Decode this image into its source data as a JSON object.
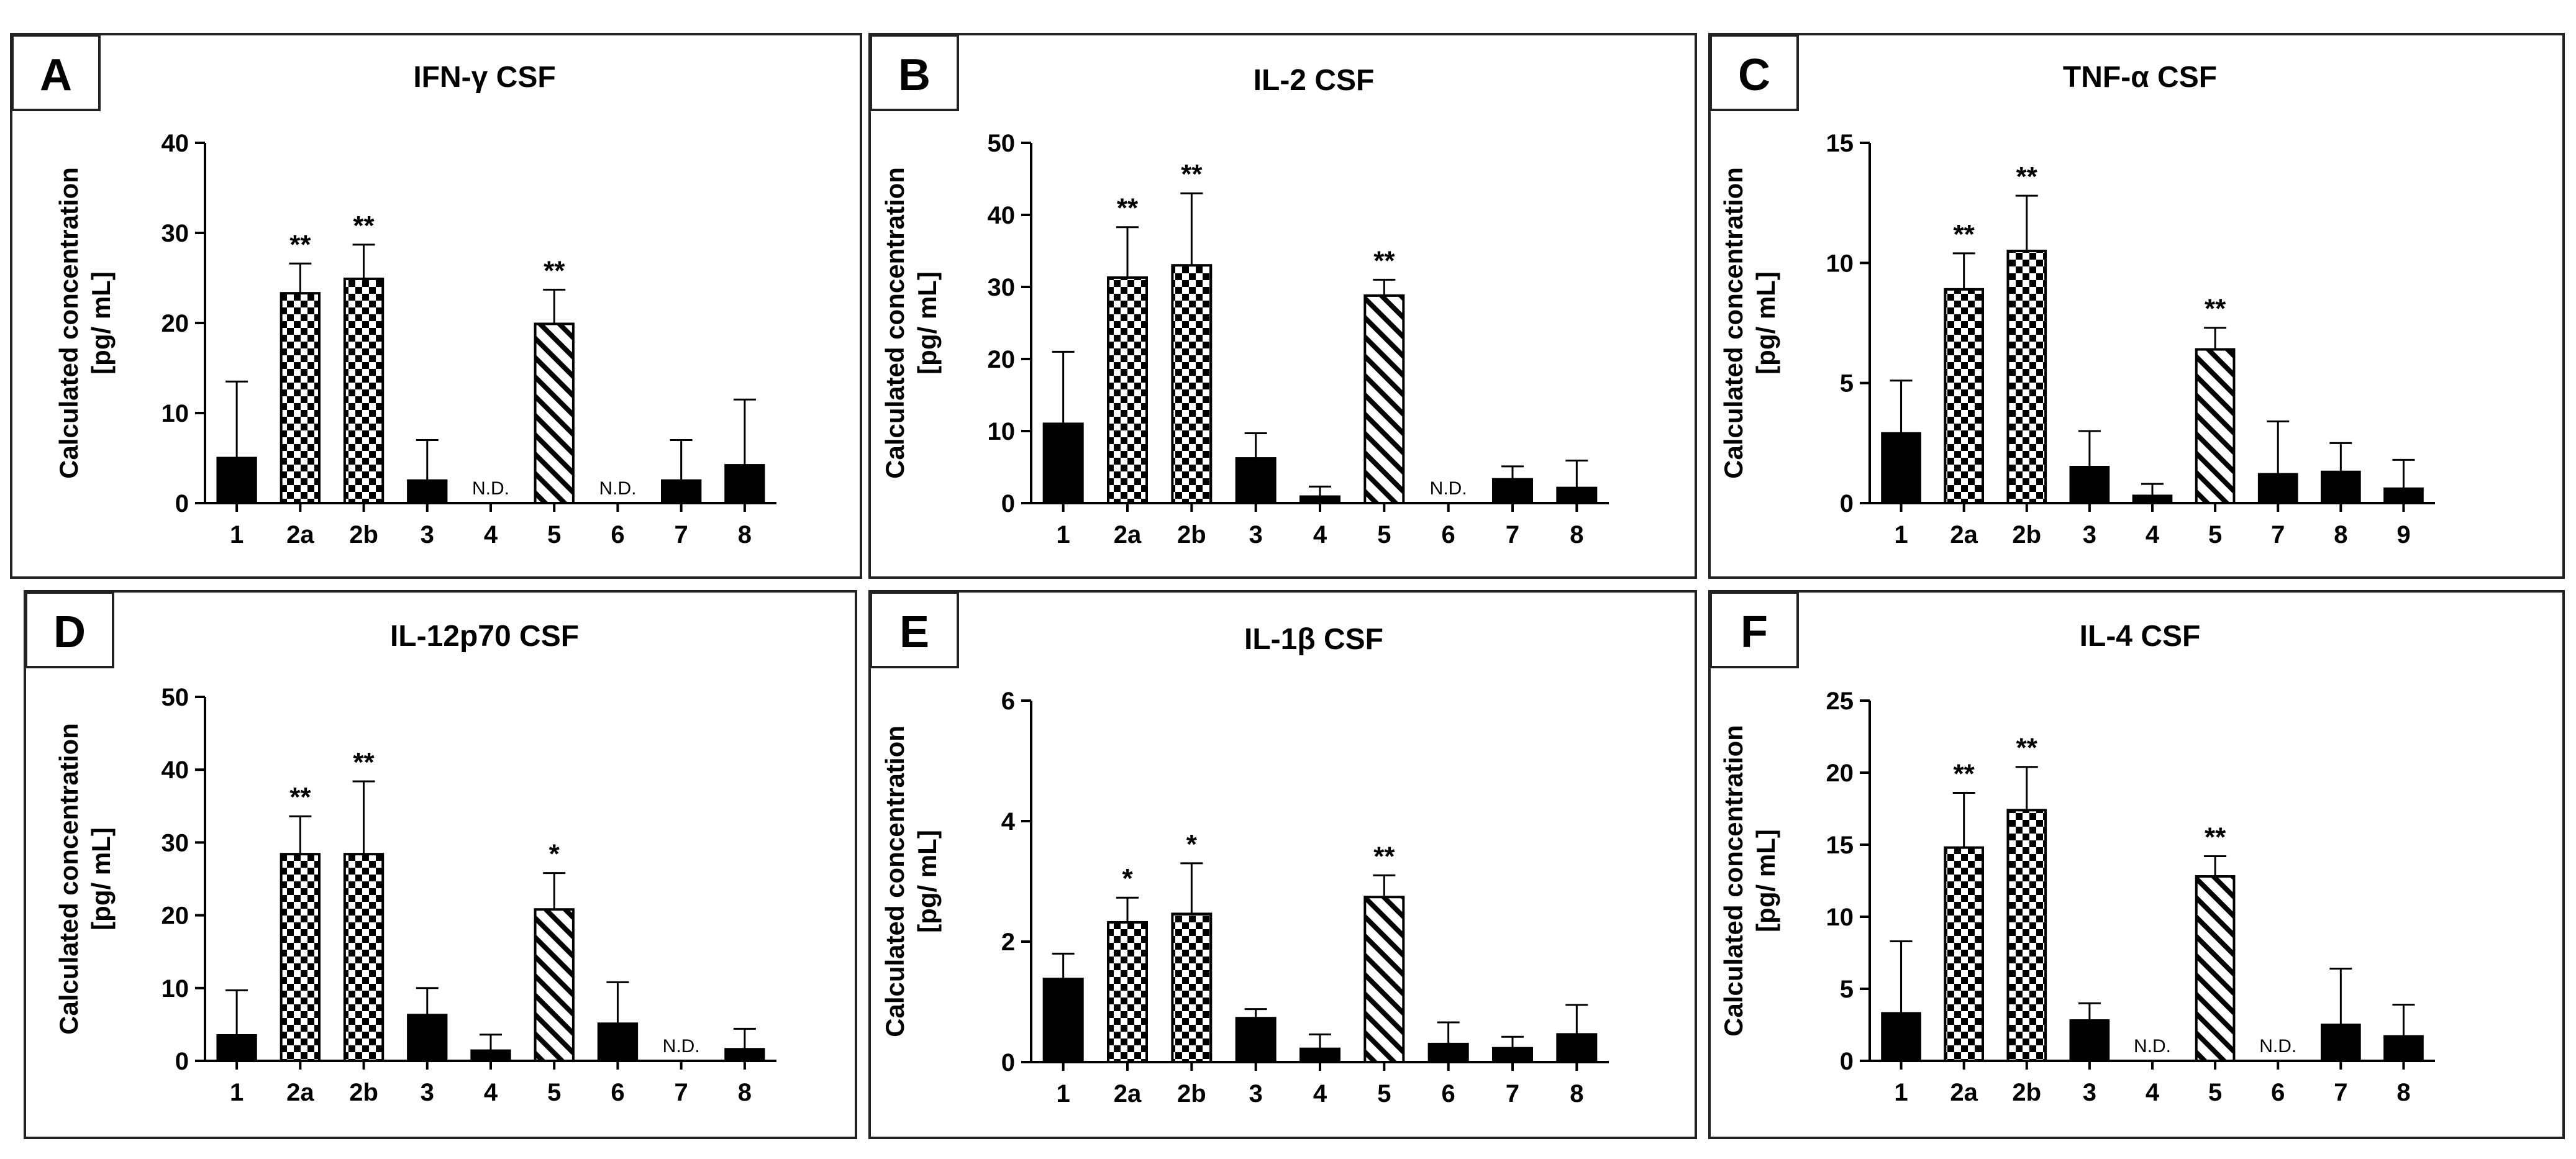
{
  "figure": {
    "colors": {
      "bar": "#000000",
      "text": "#000000",
      "background": "#ffffff",
      "border": "#222222"
    },
    "ylabel_line1": "Calculated concentration",
    "ylabel_line2": "[pg/ mL]"
  },
  "chart_data": [
    {
      "type": "bar",
      "letter": "A",
      "title": "IFN-γ CSF",
      "categories": [
        "1",
        "2a",
        "2b",
        "3",
        "4",
        "5",
        "6",
        "7",
        "8"
      ],
      "values": [
        5,
        23.3,
        24.9,
        2.5,
        null,
        19.9,
        null,
        2.5,
        4.2
      ],
      "errors": [
        8.5,
        3.3,
        3.8,
        4.5,
        null,
        3.8,
        null,
        4.5,
        7.3
      ],
      "patterns": [
        "solid",
        "check",
        "check",
        "solid",
        "none",
        "hatch",
        "none",
        "solid",
        "solid"
      ],
      "annotations": [
        "",
        "**",
        "**",
        "",
        "N.D.",
        "**",
        "N.D.",
        "",
        ""
      ],
      "ylim": [
        0,
        40
      ],
      "yticks": [
        0,
        10,
        20,
        30,
        40
      ]
    },
    {
      "type": "bar",
      "letter": "B",
      "title": "IL-2 CSF",
      "categories": [
        "1",
        "2a",
        "2b",
        "3",
        "4",
        "5",
        "6",
        "7",
        "8"
      ],
      "values": [
        11,
        31.3,
        33,
        6.2,
        0.9,
        28.8,
        null,
        3.3,
        2.1
      ],
      "errors": [
        10,
        7,
        10,
        3.5,
        1.4,
        2.2,
        null,
        1.8,
        3.8
      ],
      "patterns": [
        "solid",
        "check",
        "check",
        "solid",
        "solid",
        "hatch",
        "none",
        "solid",
        "solid"
      ],
      "annotations": [
        "",
        "**",
        "**",
        "",
        "",
        "**",
        "N.D.",
        "",
        ""
      ],
      "ylim": [
        0,
        50
      ],
      "yticks": [
        0,
        10,
        20,
        30,
        40,
        50
      ]
    },
    {
      "type": "bar",
      "letter": "C",
      "title": "TNF-α CSF",
      "categories": [
        "1",
        "2a",
        "2b",
        "3",
        "4",
        "5",
        "7",
        "8",
        "9"
      ],
      "values": [
        2.9,
        8.9,
        10.5,
        1.5,
        0.3,
        6.4,
        1.2,
        1.3,
        0.6
      ],
      "errors": [
        2.2,
        1.5,
        2.3,
        1.5,
        0.5,
        0.9,
        2.2,
        1.2,
        1.2
      ],
      "patterns": [
        "solid",
        "check",
        "check",
        "solid",
        "solid",
        "hatch",
        "solid",
        "solid",
        "solid"
      ],
      "annotations": [
        "",
        "**",
        "**",
        "",
        "",
        "**",
        "",
        "",
        ""
      ],
      "ylim": [
        0,
        15
      ],
      "yticks": [
        0,
        5,
        10,
        15
      ]
    },
    {
      "type": "bar",
      "letter": "D",
      "title": "IL-12p70 CSF",
      "categories": [
        "1",
        "2a",
        "2b",
        "3",
        "4",
        "5",
        "6",
        "7",
        "8"
      ],
      "values": [
        3.5,
        28.4,
        28.4,
        6.3,
        1.4,
        20.8,
        5.1,
        null,
        1.6
      ],
      "errors": [
        6.2,
        5.2,
        10,
        3.7,
        2.2,
        5,
        5.7,
        null,
        2.8
      ],
      "patterns": [
        "solid",
        "check",
        "check",
        "solid",
        "solid",
        "hatch",
        "solid",
        "none",
        "solid"
      ],
      "annotations": [
        "",
        "**",
        "**",
        "",
        "",
        "*",
        "",
        "N.D.",
        ""
      ],
      "ylim": [
        0,
        50
      ],
      "yticks": [
        0,
        10,
        20,
        30,
        40,
        50
      ]
    },
    {
      "type": "bar",
      "letter": "E",
      "title": "IL-1β CSF",
      "categories": [
        "1",
        "2a",
        "2b",
        "3",
        "4",
        "5",
        "6",
        "7",
        "8"
      ],
      "values": [
        1.38,
        2.32,
        2.46,
        0.73,
        0.22,
        2.74,
        0.3,
        0.23,
        0.46
      ],
      "errors": [
        0.42,
        0.41,
        0.84,
        0.15,
        0.24,
        0.36,
        0.36,
        0.19,
        0.49
      ],
      "patterns": [
        "solid",
        "check",
        "check",
        "solid",
        "solid",
        "hatch",
        "solid",
        "solid",
        "solid"
      ],
      "annotations": [
        "",
        "*",
        "*",
        "",
        "",
        "**",
        "",
        "",
        ""
      ],
      "ylim": [
        0,
        6
      ],
      "yticks": [
        0,
        2,
        4,
        6
      ]
    },
    {
      "type": "bar",
      "letter": "F",
      "title": "IL-4 CSF",
      "categories": [
        "1",
        "2a",
        "2b",
        "3",
        "4",
        "5",
        "6",
        "7",
        "8"
      ],
      "values": [
        3.3,
        14.8,
        17.4,
        2.8,
        null,
        12.8,
        null,
        2.5,
        1.7
      ],
      "errors": [
        5,
        3.8,
        3,
        1.2,
        null,
        1.4,
        null,
        3.9,
        2.2
      ],
      "patterns": [
        "solid",
        "check",
        "check",
        "solid",
        "none",
        "hatch",
        "none",
        "solid",
        "solid"
      ],
      "annotations": [
        "",
        "**",
        "**",
        "",
        "N.D.",
        "**",
        "N.D.",
        "",
        ""
      ],
      "ylim": [
        0,
        25
      ],
      "yticks": [
        0,
        5,
        10,
        15,
        20,
        25
      ]
    }
  ]
}
